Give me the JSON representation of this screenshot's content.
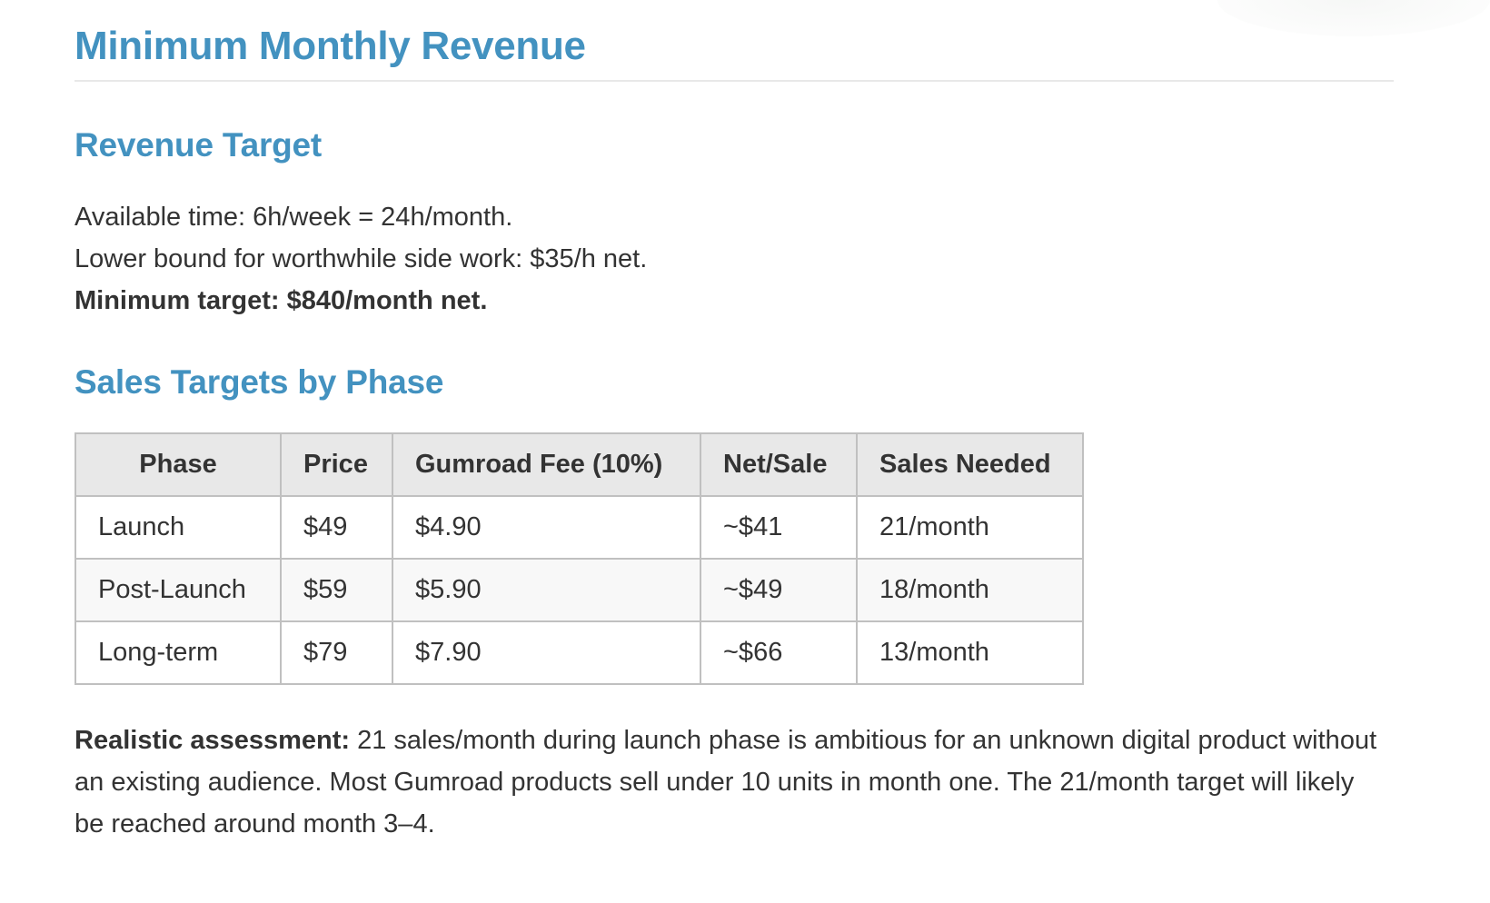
{
  "document": {
    "title": "Minimum Monthly Revenue",
    "sections": {
      "revenue_target": {
        "heading": "Revenue Target",
        "lines": [
          "Available time: 6h/week = 24h/month.",
          "Lower bound for worthwhile side work: $35/h net.",
          "Minimum target: $840/month net."
        ]
      },
      "sales_targets": {
        "heading": "Sales Targets by Phase",
        "table": {
          "headers": [
            "Phase",
            "Price",
            "Gumroad Fee (10%)",
            "Net/Sale",
            "Sales Needed"
          ],
          "rows": [
            [
              "Launch",
              "$49",
              "$4.90",
              "~$41",
              "21/month"
            ],
            [
              "Post-Launch",
              "$59",
              "$5.90",
              "~$49",
              "18/month"
            ],
            [
              "Long-term",
              "$79",
              "$7.90",
              "~$66",
              "13/month"
            ]
          ]
        },
        "assessment": {
          "label": "Realistic assessment:",
          "text": " 21 sales/month during launch phase is ambitious for an unknown digital product without an existing audience. Most Gumroad products sell under 10 units in month one. The 21/month target will likely be reached around month 3–4."
        }
      }
    }
  },
  "colors": {
    "heading": "#4392c0",
    "text": "#333333",
    "table_header_bg": "#e8e8e8",
    "table_border": "#c0c0c0",
    "table_alt_row_bg": "#f8f8f8",
    "rule": "#e8e8e8"
  }
}
